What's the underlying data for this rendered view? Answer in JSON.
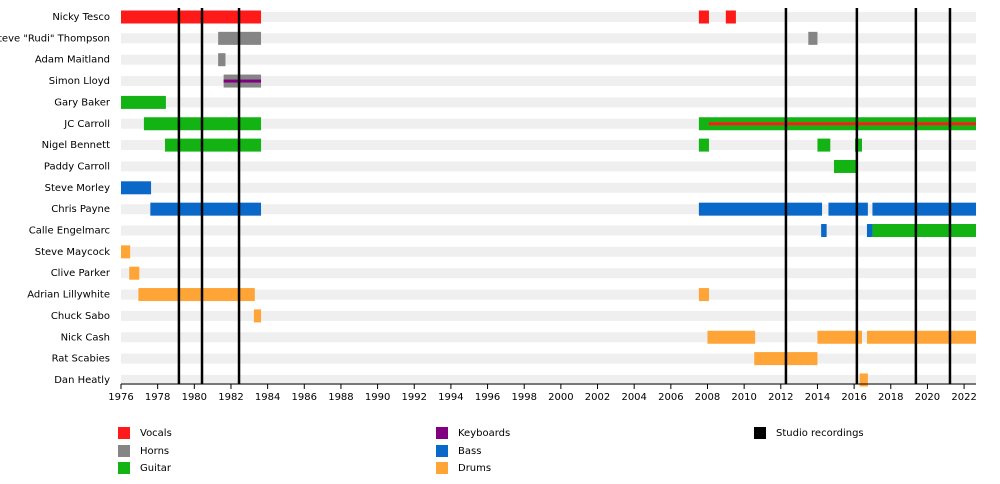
{
  "chart_data": {
    "type": "timeline",
    "roles": [
      {
        "name": "Vocals",
        "color": "#ff1a1a"
      },
      {
        "name": "Horns",
        "color": "#858585"
      },
      {
        "name": "Guitar",
        "color": "#12b312"
      },
      {
        "name": "Keyboards",
        "color": "#800080"
      },
      {
        "name": "Bass",
        "color": "#0a68c8"
      },
      {
        "name": "Drums",
        "color": "#ffa436"
      }
    ],
    "studio": {
      "name": "Studio recordings",
      "color": "#000000",
      "values": [
        1979.16,
        1980.42,
        1982.44,
        2012.28,
        2016.15,
        2019.37,
        2021.23
      ]
    },
    "members": [
      {
        "name": "Nicky Tesco",
        "segments": [
          {
            "start": 1976,
            "end": 1983.64,
            "role": "Vocals"
          },
          {
            "start": 2007.53,
            "end": 2008.08,
            "role": "Vocals"
          },
          {
            "start": 2009.0,
            "end": 2009.55,
            "role": "Vocals"
          }
        ]
      },
      {
        "name": "Steve \"Rudi\" Thompson",
        "segments": [
          {
            "start": 1981.3,
            "end": 1983.64,
            "role": "Horns"
          },
          {
            "start": 2013.5,
            "end": 2014.0,
            "role": "Horns"
          }
        ]
      },
      {
        "name": "Adam Maitland",
        "segments": [
          {
            "start": 1981.3,
            "end": 1981.7,
            "role": "Horns"
          }
        ]
      },
      {
        "name": "Simon Lloyd",
        "segments": [
          {
            "start": 1981.6,
            "end": 1983.64,
            "role": "Horns",
            "secondary": "Keyboards"
          }
        ]
      },
      {
        "name": "Gary Baker",
        "segments": [
          {
            "start": 1976,
            "end": 1978.45,
            "role": "Guitar"
          }
        ]
      },
      {
        "name": "JC Carroll",
        "segments": [
          {
            "start": 1977.25,
            "end": 1983.64,
            "role": "Guitar"
          },
          {
            "start": 2007.53,
            "end": 2022.65,
            "role": "Guitar",
            "secondary": "Vocals"
          }
        ]
      },
      {
        "name": "Nigel Bennett",
        "segments": [
          {
            "start": 1978.4,
            "end": 1983.64,
            "role": "Guitar"
          },
          {
            "start": 2007.53,
            "end": 2008.08,
            "role": "Guitar"
          },
          {
            "start": 2014.0,
            "end": 2014.7,
            "role": "Guitar"
          },
          {
            "start": 2016.05,
            "end": 2016.43,
            "role": "Guitar"
          }
        ]
      },
      {
        "name": "Paddy Carroll",
        "segments": [
          {
            "start": 2014.9,
            "end": 2016.1,
            "role": "Guitar"
          }
        ]
      },
      {
        "name": "Steve Morley",
        "segments": [
          {
            "start": 1976,
            "end": 1977.64,
            "role": "Bass"
          }
        ]
      },
      {
        "name": "Chris Payne",
        "segments": [
          {
            "start": 1977.6,
            "end": 1983.64,
            "role": "Bass"
          },
          {
            "start": 2007.53,
            "end": 2014.25,
            "role": "Bass"
          },
          {
            "start": 2014.6,
            "end": 2016.75,
            "role": "Bass"
          },
          {
            "start": 2017.0,
            "end": 2022.65,
            "role": "Bass"
          }
        ]
      },
      {
        "name": "Calle Engelmarc",
        "segments": [
          {
            "start": 2014.2,
            "end": 2014.5,
            "role": "Bass"
          },
          {
            "start": 2016.7,
            "end": 2017.0,
            "role": "Bass"
          },
          {
            "start": 2017.0,
            "end": 2022.65,
            "role": "Guitar"
          }
        ]
      },
      {
        "name": "Steve Maycock",
        "segments": [
          {
            "start": 1976,
            "end": 1976.5,
            "role": "Drums"
          }
        ]
      },
      {
        "name": "Clive Parker",
        "segments": [
          {
            "start": 1976.45,
            "end": 1977.0,
            "role": "Drums"
          }
        ]
      },
      {
        "name": "Adrian Lillywhite",
        "segments": [
          {
            "start": 1976.95,
            "end": 1983.3,
            "role": "Drums"
          },
          {
            "start": 2007.53,
            "end": 2008.08,
            "role": "Drums"
          }
        ]
      },
      {
        "name": "Chuck Sabo",
        "segments": [
          {
            "start": 1983.25,
            "end": 1983.64,
            "role": "Drums"
          }
        ]
      },
      {
        "name": "Nick Cash",
        "segments": [
          {
            "start": 2008.0,
            "end": 2010.6,
            "role": "Drums"
          },
          {
            "start": 2014.0,
            "end": 2016.43,
            "role": "Drums"
          },
          {
            "start": 2016.7,
            "end": 2022.65,
            "role": "Drums"
          }
        ]
      },
      {
        "name": "Rat Scabies",
        "segments": [
          {
            "start": 2010.55,
            "end": 2014.0,
            "role": "Drums"
          }
        ]
      },
      {
        "name": "Dan Heatly",
        "segments": [
          {
            "start": 2016.3,
            "end": 2016.75,
            "role": "Drums"
          }
        ]
      }
    ],
    "xlim": [
      1976,
      2022.65
    ],
    "xticks": [
      1976,
      1978,
      1980,
      1982,
      1984,
      1986,
      1988,
      1990,
      1992,
      1994,
      1996,
      1998,
      2000,
      2002,
      2004,
      2006,
      2008,
      2010,
      2012,
      2014,
      2016,
      2018,
      2020,
      2022
    ]
  }
}
